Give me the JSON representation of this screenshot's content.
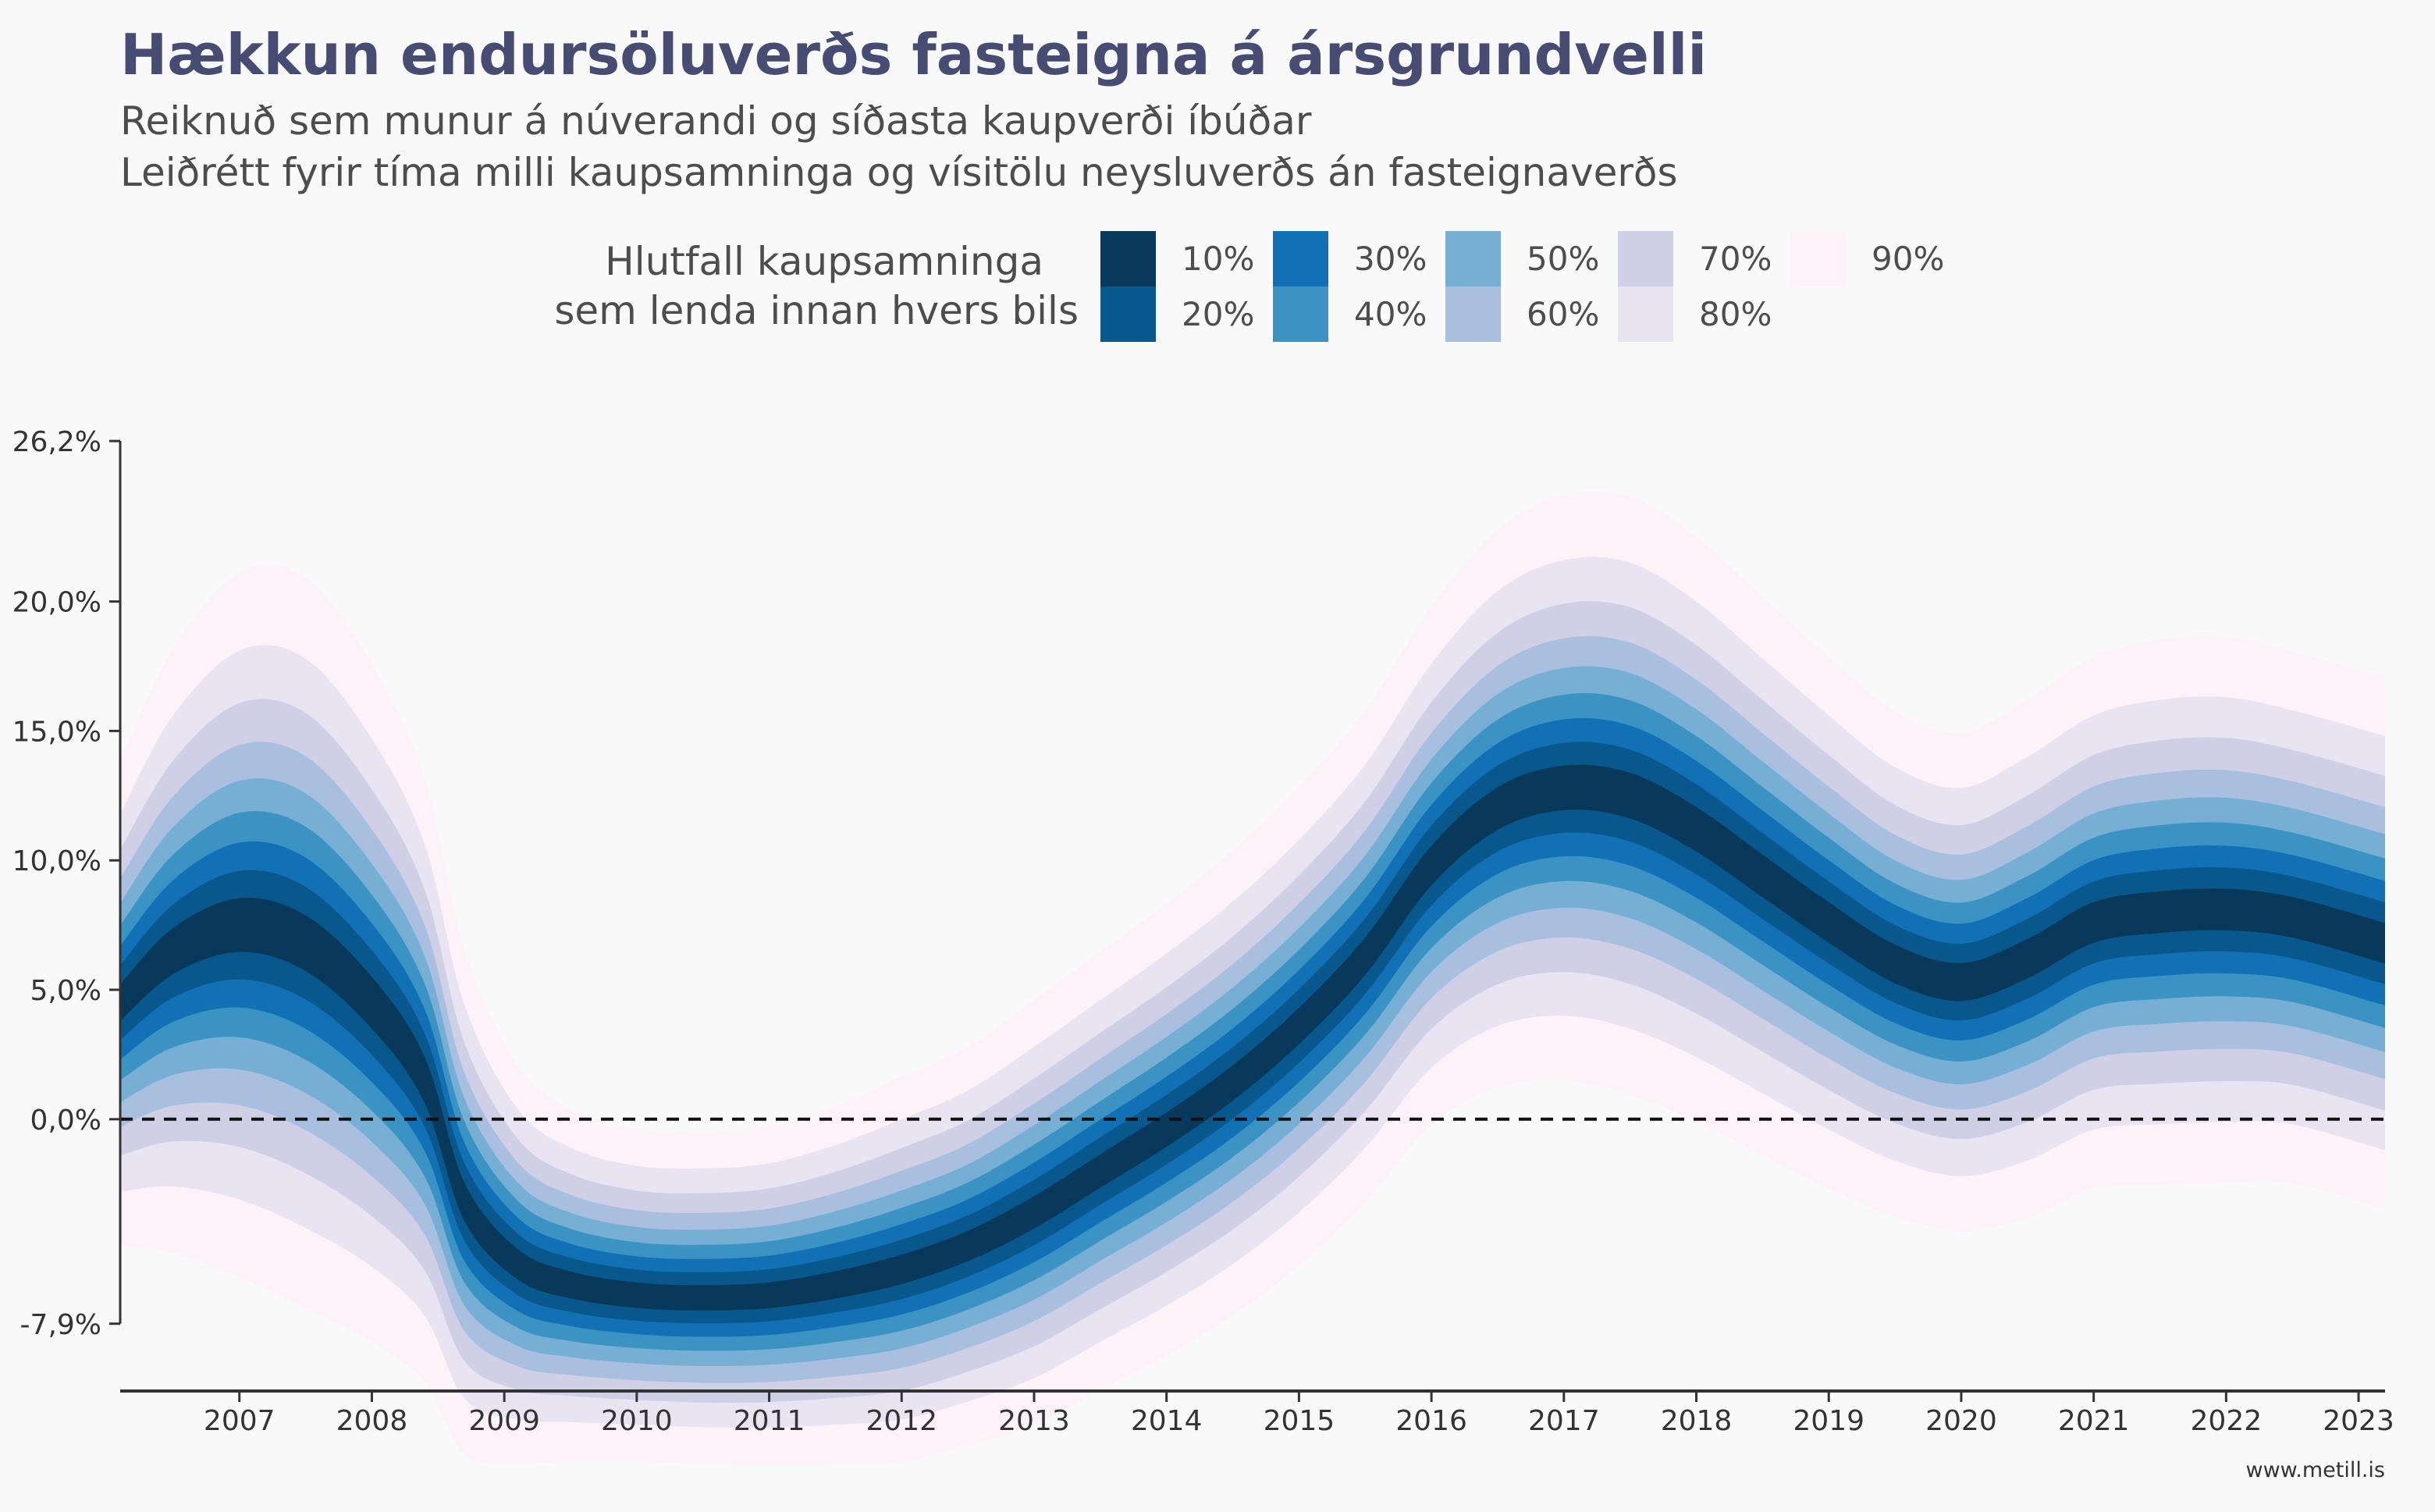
{
  "chart_data": {
    "type": "area",
    "title": "Hækkun endursöluverðs fasteigna á ársgrundvelli",
    "subtitle_lines": [
      "Reiknuð sem munur á núverandi og síðasta kaupverði íbúðar",
      "Leiðrétt fyrir tíma milli kaupsamninga og vísitölu neysluverðs án fasteignaverðs"
    ],
    "legend": {
      "title_lines": [
        "Hlutfall kaupsamninga",
        "sem lenda innan hvers bils"
      ],
      "placement": "top-center"
    },
    "x_ticks": [
      "2007",
      "2008",
      "2009",
      "2010",
      "2011",
      "2012",
      "2013",
      "2014",
      "2015",
      "2016",
      "2017",
      "2018",
      "2019",
      "2020",
      "2021",
      "2022",
      "2023"
    ],
    "y_ticks": [
      {
        "value": -7.9,
        "label": "-7,9%"
      },
      {
        "value": 0,
        "label": "0,0%"
      },
      {
        "value": 5,
        "label": "5,0%"
      },
      {
        "value": 10,
        "label": "10,0%"
      },
      {
        "value": 15,
        "label": "15,0%"
      },
      {
        "value": 20,
        "label": "20,0%"
      },
      {
        "value": 26.2,
        "label": "26,2%"
      }
    ],
    "xlim": [
      2006.6,
      2023.7
    ],
    "ylim": [
      -10.5,
      26.2
    ],
    "reference_line": {
      "y": 0,
      "style": "dashed"
    },
    "grid": false,
    "x": [
      2006.6,
      2007.0,
      2007.5,
      2008.0,
      2008.5,
      2008.9,
      2009.2,
      2009.6,
      2010.0,
      2010.5,
      2011.0,
      2011.5,
      2012.0,
      2012.5,
      2013.0,
      2013.5,
      2014.0,
      2014.5,
      2015.0,
      2015.5,
      2016.0,
      2016.5,
      2017.0,
      2017.5,
      2018.0,
      2018.5,
      2019.0,
      2019.5,
      2020.0,
      2020.5,
      2021.0,
      2021.5,
      2022.0,
      2022.5,
      2023.0,
      2023.7
    ],
    "median": [
      4.5,
      6.5,
      7.5,
      6.8,
      4.5,
      1.5,
      -3.2,
      -5.6,
      -6.4,
      -6.8,
      -6.9,
      -6.8,
      -6.4,
      -5.8,
      -4.9,
      -3.6,
      -2.0,
      -0.4,
      1.4,
      3.6,
      6.3,
      9.8,
      12.0,
      12.8,
      12.5,
      11.2,
      9.4,
      7.6,
      6.0,
      5.3,
      6.2,
      7.6,
      8.0,
      8.1,
      7.8,
      6.8
    ],
    "halfwidth_80": [
      7.3,
      9.1,
      10.6,
      11.0,
      10.2,
      9.1,
      7.6,
      6.0,
      5.3,
      5.0,
      5.0,
      5.1,
      5.4,
      5.8,
      6.0,
      6.4,
      6.6,
      6.8,
      7.0,
      7.2,
      7.4,
      7.8,
      8.4,
      8.8,
      9.0,
      8.8,
      8.4,
      8.0,
      7.6,
      7.5,
      7.8,
      8.0,
      8.2,
      8.2,
      8.0,
      8.0
    ],
    "series": [
      {
        "name": "10%",
        "coverage": 0.1,
        "color": "#08395a"
      },
      {
        "name": "20%",
        "coverage": 0.2,
        "color": "#08588e"
      },
      {
        "name": "30%",
        "coverage": 0.3,
        "color": "#1171b4"
      },
      {
        "name": "40%",
        "coverage": 0.4,
        "color": "#3b93c4"
      },
      {
        "name": "50%",
        "coverage": 0.5,
        "color": "#76aed4"
      },
      {
        "name": "60%",
        "coverage": 0.6,
        "color": "#a8bfe0"
      },
      {
        "name": "70%",
        "coverage": 0.7,
        "color": "#cfd0e6"
      },
      {
        "name": "80%",
        "coverage": 0.8,
        "color": "#e9e4f1"
      },
      {
        "name": "90%",
        "coverage": 0.9,
        "color": "#fcf2f8"
      }
    ]
  },
  "footer": {
    "source": "www.metill.is"
  }
}
